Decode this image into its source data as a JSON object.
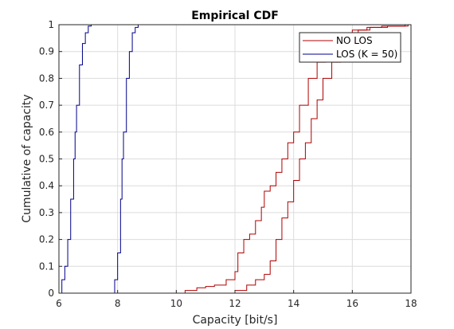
{
  "chart_data": {
    "type": "line",
    "title": "Empirical CDF",
    "xlabel": "Capacity [bit/s]",
    "ylabel": "Cumulative of capacity",
    "xlim": [
      6,
      18
    ],
    "ylim": [
      0,
      1
    ],
    "xticks": [
      "6",
      "8",
      "10",
      "12",
      "14",
      "16",
      "18"
    ],
    "yticks": [
      "0",
      "0.1",
      "0.2",
      "0.3",
      "0.4",
      "0.5",
      "0.6",
      "0.7",
      "0.8",
      "0.9",
      "1"
    ],
    "grid": true,
    "legend_position": "top-right",
    "legend": [
      "NO LOS",
      "LOS (K = 50)"
    ],
    "series": [
      {
        "name": "NO LOS",
        "color": "#b00000",
        "x": [
          10.1,
          10.3,
          10.7,
          11.0,
          11.3,
          11.7,
          12.0,
          12.1,
          12.3,
          12.5,
          12.7,
          12.9,
          13.0,
          13.2,
          13.4,
          13.6,
          13.8,
          14.0,
          14.2,
          14.5,
          14.8,
          15.1,
          15.4,
          15.7,
          16.0,
          16.5,
          17.0,
          17.8
        ],
        "y": [
          0.0,
          0.01,
          0.02,
          0.025,
          0.03,
          0.05,
          0.08,
          0.15,
          0.2,
          0.22,
          0.27,
          0.32,
          0.38,
          0.4,
          0.45,
          0.5,
          0.56,
          0.6,
          0.7,
          0.8,
          0.86,
          0.91,
          0.94,
          0.96,
          0.98,
          0.99,
          0.995,
          1.0
        ]
      },
      {
        "name": "NO LOS",
        "color": "#b00000",
        "x": [
          11.6,
          12.0,
          12.4,
          12.7,
          13.0,
          13.2,
          13.4,
          13.6,
          13.8,
          14.0,
          14.2,
          14.4,
          14.6,
          14.8,
          15.0,
          15.3,
          15.6,
          15.9,
          16.2,
          16.6,
          17.2,
          17.9
        ],
        "y": [
          0.0,
          0.01,
          0.03,
          0.05,
          0.07,
          0.12,
          0.2,
          0.28,
          0.34,
          0.42,
          0.5,
          0.56,
          0.65,
          0.72,
          0.8,
          0.86,
          0.91,
          0.95,
          0.98,
          0.99,
          0.995,
          1.0
        ]
      },
      {
        "name": "LOS (K = 50)",
        "color": "#00008b",
        "x": [
          6.0,
          6.1,
          6.2,
          6.3,
          6.4,
          6.5,
          6.55,
          6.6,
          6.7,
          6.8,
          6.9,
          7.0,
          7.1
        ],
        "y": [
          0.0,
          0.05,
          0.1,
          0.2,
          0.35,
          0.5,
          0.6,
          0.7,
          0.85,
          0.93,
          0.97,
          0.995,
          1.0
        ]
      },
      {
        "name": "LOS (K = 50)",
        "color": "#00008b",
        "x": [
          7.8,
          7.9,
          8.0,
          8.1,
          8.15,
          8.2,
          8.3,
          8.4,
          8.5,
          8.6,
          8.7
        ],
        "y": [
          0.0,
          0.05,
          0.15,
          0.35,
          0.5,
          0.6,
          0.8,
          0.9,
          0.97,
          0.99,
          1.0
        ]
      }
    ]
  }
}
